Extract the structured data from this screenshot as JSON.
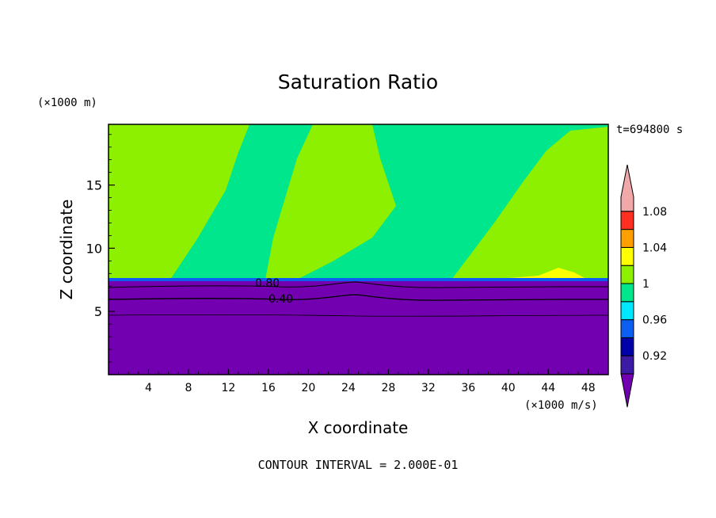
{
  "chart_data": {
    "type": "contour",
    "title": "Saturation Ratio",
    "xlabel": "X coordinate",
    "ylabel": "Z coordinate",
    "x_unit": "(×1000 m/s)",
    "y_unit": "(×1000 m)",
    "time_label": "t=694800 s",
    "footer": "CONTOUR INTERVAL = 2.000E-01",
    "xlim": [
      0,
      50
    ],
    "ylim": [
      0,
      19.8
    ],
    "x_ticks": [
      "4",
      "8",
      "12",
      "16",
      "20",
      "24",
      "28",
      "32",
      "36",
      "40",
      "44",
      "48"
    ],
    "y_ticks": [
      "5",
      "10",
      "15"
    ],
    "contour_labels": [
      "0.80",
      "0.40"
    ],
    "colorbar": {
      "tick_labels": [
        "0.92",
        "0.96",
        "1",
        "1.04",
        "1.08"
      ],
      "levels": [
        0.92,
        0.94,
        0.96,
        0.98,
        1.0,
        1.02,
        1.04,
        1.06,
        1.08,
        1.1
      ],
      "colors": [
        "#3b1aa6",
        "#0000a8",
        "#0b5ef0",
        "#00e8ff",
        "#00e68c",
        "#8cf000",
        "#ffff00",
        "#ffa000",
        "#ff3020",
        "#f0a8a8"
      ],
      "under_color": "#7300b0"
    },
    "regions": {
      "lower_color": "#7300b0",
      "mid_color": "#00e68c",
      "high_color": "#8cf000",
      "inversion_height": 7.5
    }
  }
}
